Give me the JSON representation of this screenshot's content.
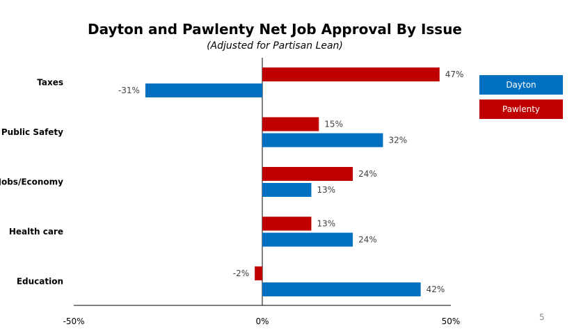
{
  "chart_data": {
    "type": "bar",
    "orientation": "horizontal",
    "title": "Dayton and Pawlenty Net Job Approval By Issue",
    "subtitle": "(Adjusted for Partisan Lean)",
    "categories": [
      "Taxes",
      "Public Safety",
      "Jobs/Economy",
      "Health care",
      "Education"
    ],
    "series": [
      {
        "name": "Pawlenty",
        "color": "#c00000",
        "values": [
          47,
          15,
          24,
          13,
          -2
        ],
        "labels": [
          "47%",
          "15%",
          "24%",
          "13%",
          "-2%"
        ]
      },
      {
        "name": "Dayton",
        "color": "#0070c0",
        "values": [
          -31,
          32,
          13,
          24,
          42
        ],
        "labels": [
          "-31%",
          "32%",
          "13%",
          "24%",
          "42%"
        ]
      }
    ],
    "xlim": [
      -50,
      50
    ],
    "xticks": [
      -50,
      0,
      50
    ],
    "xtick_labels": [
      "-50%",
      "0%",
      "50%"
    ],
    "grid": false,
    "legend_position": "right"
  },
  "legend": [
    {
      "label": "Dayton",
      "color": "#0070c0"
    },
    {
      "label": "Pawlenty",
      "color": "#c00000"
    }
  ],
  "page_number": "5"
}
